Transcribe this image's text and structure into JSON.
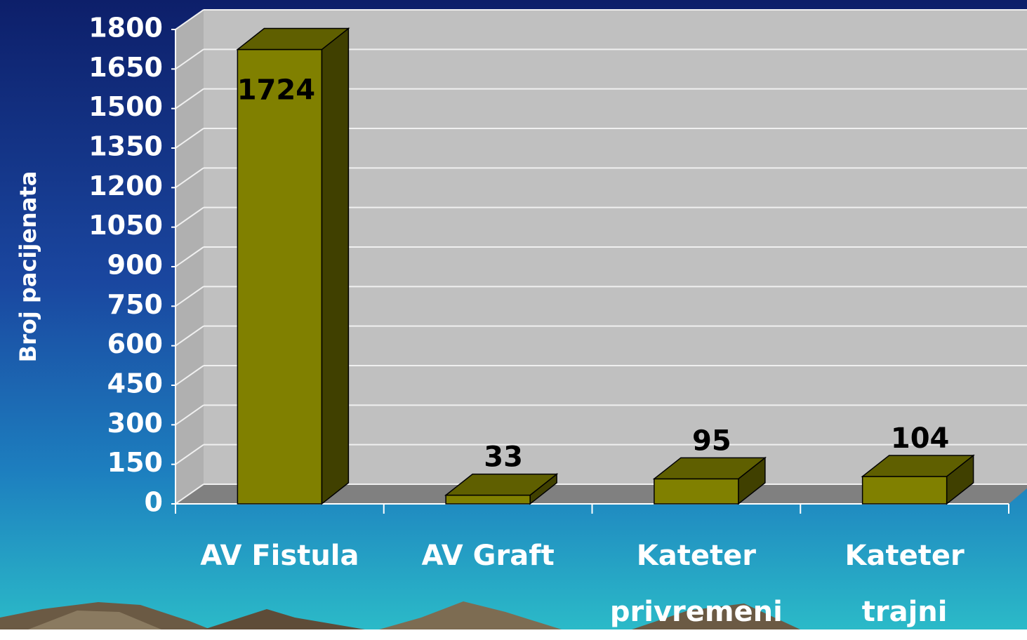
{
  "chart_data": {
    "type": "bar3d",
    "y_label": "Broj pacijenata",
    "categories": [
      "AV Fistula",
      "AV Graft",
      "Kateter\nprivremeni",
      "Kateter\ntrajni"
    ],
    "values": [
      1724,
      33,
      95,
      104
    ],
    "color": "#808000",
    "ylim": [
      0,
      1800
    ],
    "yticks": [
      0,
      150,
      300,
      450,
      600,
      750,
      900,
      1050,
      1200,
      1350,
      1500,
      1650,
      1800
    ],
    "grid": true
  }
}
